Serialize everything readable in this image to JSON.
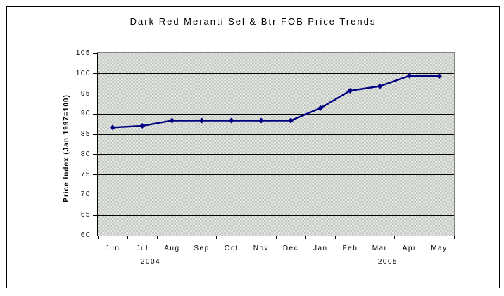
{
  "chart_data": {
    "type": "line",
    "title": "Dark Red Meranti Sel & Btr FOB Price Trends",
    "ylabel": "Price Index (Jan 1997=100)",
    "xlabel": "",
    "categories": [
      "Jun",
      "Jul",
      "Aug",
      "Sep",
      "Oct",
      "Nov",
      "Dec",
      "Jan",
      "Feb",
      "Mar",
      "Apr",
      "May"
    ],
    "values": [
      86.7,
      87.1,
      88.4,
      88.4,
      88.4,
      88.4,
      88.4,
      91.5,
      95.8,
      96.9,
      99.5,
      99.4
    ],
    "years": [
      "2004",
      "2005"
    ],
    "ylim": [
      60,
      105
    ],
    "ytick_step": 5,
    "ytick_labels": [
      "60",
      "65",
      "70",
      "75",
      "80",
      "85",
      "90",
      "95",
      "100",
      "105"
    ],
    "grid": true,
    "legend": "none",
    "marker": "diamond",
    "colors": {
      "line": "#000080",
      "marker": "#000080",
      "gridline": "#000000",
      "plot_border": "#848484",
      "plot_background": "#d8dad6"
    }
  }
}
